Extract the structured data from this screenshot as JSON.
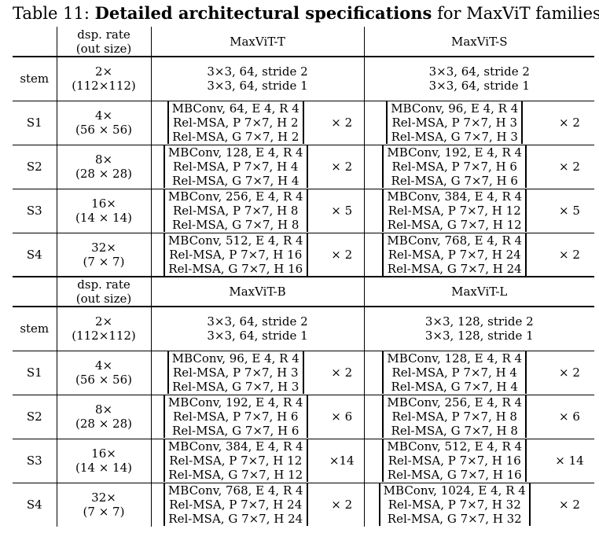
{
  "caption": {
    "prefix": "Table 11: ",
    "bold": "Detailed architectural specifications",
    "suffix": " for MaxViT families."
  },
  "header": {
    "rate_line1": "dsp. rate",
    "rate_line2": "(out size)"
  },
  "blocks": [
    {
      "model_a": "MaxViT-T",
      "model_b": "MaxViT-S",
      "rows": [
        {
          "stage": "stem",
          "rate": [
            "2×",
            "(112×112)"
          ],
          "a": [
            "3×3, 64, stride 2",
            "3×3, 64, stride 1"
          ],
          "a_mult": "",
          "b": [
            "3×3, 64, stride 2",
            "3×3, 64, stride 1"
          ],
          "b_mult": ""
        },
        {
          "stage": "S1",
          "rate": [
            "4×",
            "(56 × 56)"
          ],
          "a": [
            "MBConv, 64, E 4, R 4",
            "Rel-MSA, P 7×7, H 2",
            "Rel-MSA, G 7×7, H 2"
          ],
          "a_mult": "× 2",
          "b": [
            "MBConv, 96, E 4, R 4",
            "Rel-MSA, P 7×7, H 3",
            "Rel-MSA, G 7×7, H 3"
          ],
          "b_mult": "× 2"
        },
        {
          "stage": "S2",
          "rate": [
            "8×",
            "(28 × 28)"
          ],
          "a": [
            "MBConv, 128, E 4, R 4",
            "Rel-MSA, P 7×7, H 4",
            "Rel-MSA, G 7×7, H 4"
          ],
          "a_mult": "× 2",
          "b": [
            "MBConv, 192, E 4, R 4",
            "Rel-MSA, P 7×7, H 6",
            "Rel-MSA, G 7×7, H 6"
          ],
          "b_mult": "× 2"
        },
        {
          "stage": "S3",
          "rate": [
            "16×",
            "(14 × 14)"
          ],
          "a": [
            "MBConv, 256, E 4, R 4",
            "Rel-MSA, P 7×7, H 8",
            "Rel-MSA, G 7×7, H 8"
          ],
          "a_mult": "× 5",
          "b": [
            "MBConv, 384, E 4, R 4",
            "Rel-MSA, P 7×7, H 12",
            "Rel-MSA, G 7×7, H 12"
          ],
          "b_mult": "× 5"
        },
        {
          "stage": "S4",
          "rate": [
            "32×",
            "(7 × 7)"
          ],
          "a": [
            "MBConv, 512, E 4, R 4",
            "Rel-MSA, P 7×7, H 16",
            "Rel-MSA, G 7×7, H 16"
          ],
          "a_mult": "× 2",
          "b": [
            "MBConv, 768, E 4, R 4",
            "Rel-MSA, P 7×7, H 24",
            "Rel-MSA, G 7×7, H 24"
          ],
          "b_mult": "× 2"
        }
      ]
    },
    {
      "model_a": "MaxViT-B",
      "model_b": "MaxViT-L",
      "rows": [
        {
          "stage": "stem",
          "rate": [
            "2×",
            "(112×112)"
          ],
          "a": [
            "3×3, 64, stride 2",
            "3×3, 64, stride 1"
          ],
          "a_mult": "",
          "b": [
            "3×3, 128, stride 2",
            "3×3, 128, stride 1"
          ],
          "b_mult": ""
        },
        {
          "stage": "S1",
          "rate": [
            "4×",
            "(56 × 56)"
          ],
          "a": [
            "MBConv, 96, E 4, R 4",
            "Rel-MSA, P 7×7, H 3",
            "Rel-MSA, G 7×7, H 3"
          ],
          "a_mult": "× 2",
          "b": [
            "MBConv, 128, E 4, R 4",
            "Rel-MSA, P 7×7, H 4",
            "Rel-MSA, G 7×7, H 4"
          ],
          "b_mult": "× 2"
        },
        {
          "stage": "S2",
          "rate": [
            "8×",
            "(28 × 28)"
          ],
          "a": [
            "MBConv, 192, E 4, R 4",
            "Rel-MSA, P 7×7, H 6",
            "Rel-MSA, G 7×7, H 6"
          ],
          "a_mult": "× 6",
          "b": [
            "MBConv, 256, E 4, R 4",
            "Rel-MSA, P 7×7, H 8",
            "Rel-MSA, G 7×7, H 8"
          ],
          "b_mult": "× 6"
        },
        {
          "stage": "S3",
          "rate": [
            "16×",
            "(14 × 14)"
          ],
          "a": [
            "MBConv, 384, E 4, R 4",
            "Rel-MSA, P 7×7, H 12",
            "Rel-MSA, G 7×7, H 12"
          ],
          "a_mult": "×14",
          "b": [
            "MBConv, 512, E 4, R 4",
            "Rel-MSA, P 7×7, H 16",
            "Rel-MSA, G 7×7, H 16"
          ],
          "b_mult": "× 14"
        },
        {
          "stage": "S4",
          "rate": [
            "32×",
            "(7 × 7)"
          ],
          "a": [
            "MBConv, 768, E 4, R 4",
            "Rel-MSA, P 7×7, H 24",
            "Rel-MSA, G 7×7, H 24"
          ],
          "a_mult": "× 2",
          "b": [
            "MBConv, 1024, E 4, R 4",
            "Rel-MSA, P 7×7, H 32",
            "Rel-MSA, G 7×7, H 32"
          ],
          "b_mult": "× 2"
        }
      ]
    }
  ]
}
